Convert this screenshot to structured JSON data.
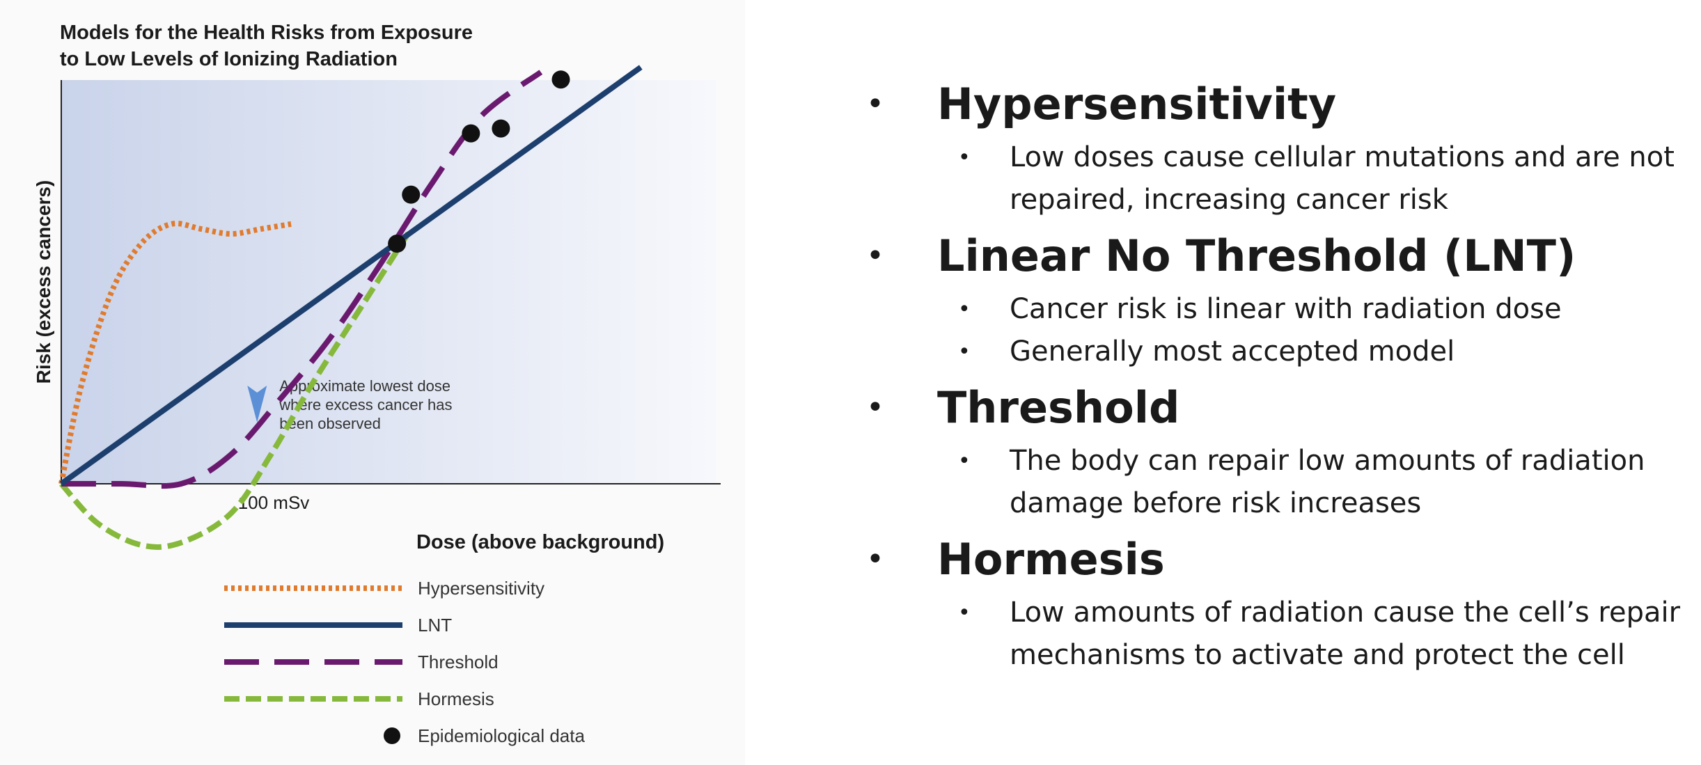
{
  "chart_data": {
    "type": "line",
    "title": [
      "Models for the Health Risks from Exposure",
      "to Low Levels of Ionizing Radiation"
    ],
    "xlabel": "Dose (above background)",
    "ylabel": "Risk (excess cancers)",
    "xlim": [
      0,
      320
    ],
    "ylim": [
      -28,
      170
    ],
    "x_ticks": [
      {
        "value": 100,
        "label": "100 mSv"
      }
    ],
    "annotation": {
      "lines": [
        "Approximate lowest dose",
        "where excess cancer has",
        "been observed"
      ],
      "x": 98,
      "y": 25
    },
    "series": [
      {
        "name": "Hypersensitivity",
        "color": "#e07b2e",
        "style": "dotted",
        "points": [
          [
            0,
            0
          ],
          [
            10,
            40
          ],
          [
            25,
            78
          ],
          [
            40,
            98
          ],
          [
            55,
            106
          ],
          [
            70,
            104
          ],
          [
            85,
            102
          ],
          [
            100,
            104
          ],
          [
            115,
            106
          ]
        ]
      },
      {
        "name": "LNT",
        "color": "#1d3f6e",
        "style": "solid",
        "points": [
          [
            0,
            0
          ],
          [
            290,
            170
          ]
        ]
      },
      {
        "name": "Threshold",
        "color": "#6a1a6e",
        "style": "longdash",
        "points": [
          [
            0,
            0
          ],
          [
            30,
            0
          ],
          [
            60,
            0
          ],
          [
            85,
            12
          ],
          [
            110,
            35
          ],
          [
            135,
            60
          ],
          [
            160,
            90
          ],
          [
            185,
            122
          ],
          [
            210,
            150
          ],
          [
            240,
            168
          ]
        ]
      },
      {
        "name": "Hormesis",
        "color": "#86b93b",
        "style": "dash",
        "points": [
          [
            0,
            0
          ],
          [
            18,
            -16
          ],
          [
            40,
            -25
          ],
          [
            60,
            -24
          ],
          [
            85,
            -12
          ],
          [
            105,
            12
          ],
          [
            125,
            40
          ],
          [
            150,
            72
          ],
          [
            175,
            104
          ]
        ]
      }
    ],
    "scatter": {
      "name": "Epidemiological data",
      "color": "#111111",
      "points": [
        [
          168,
          98
        ],
        [
          175,
          118
        ],
        [
          205,
          143
        ],
        [
          220,
          145
        ],
        [
          250,
          165
        ]
      ]
    },
    "legend_position": "bottom-center"
  },
  "topics": [
    {
      "title": "Hypersensitivity",
      "points": [
        "Low doses cause cellular mutations and are not repaired, increasing cancer risk"
      ]
    },
    {
      "title": "Linear No Threshold (LNT)",
      "points": [
        "Cancer risk is linear with radiation dose",
        "Generally most accepted model"
      ]
    },
    {
      "title": "Threshold",
      "points": [
        "The body can repair low amounts of radiation damage before risk increases"
      ]
    },
    {
      "title": "Hormesis",
      "points": [
        "Low amounts of radiation cause the cell’s repair mechanisms to activate and protect the cell"
      ]
    }
  ]
}
